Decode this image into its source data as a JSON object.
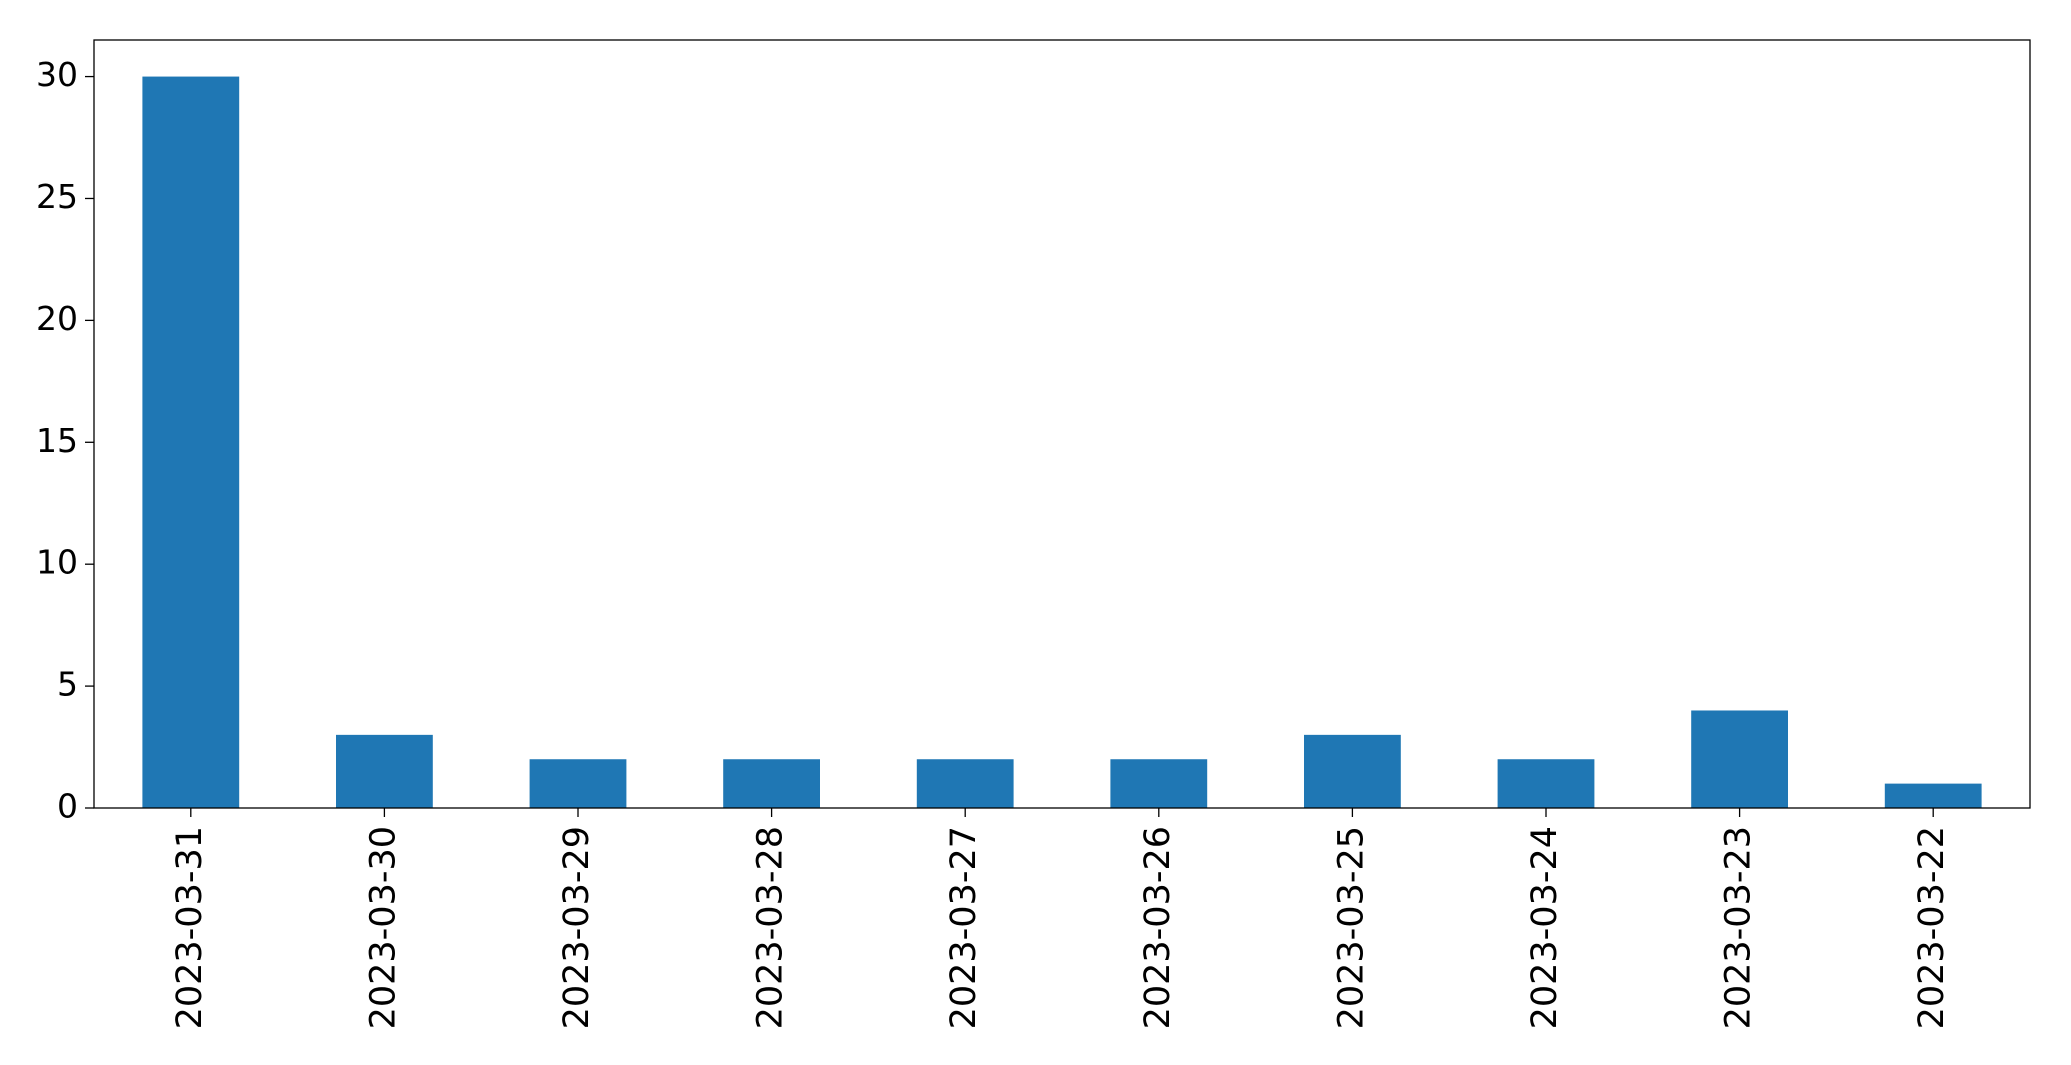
{
  "chart_data": {
    "type": "bar",
    "categories": [
      "2023-03-31",
      "2023-03-30",
      "2023-03-29",
      "2023-03-28",
      "2023-03-27",
      "2023-03-26",
      "2023-03-25",
      "2023-03-24",
      "2023-03-23",
      "2023-03-22"
    ],
    "values": [
      30,
      3,
      2,
      2,
      2,
      2,
      3,
      2,
      4,
      1
    ],
    "color": "#1f77b4",
    "ylim": [
      0,
      31.5
    ],
    "yticks": [
      0,
      5,
      10,
      15,
      20,
      25,
      30
    ],
    "grid": false
  }
}
